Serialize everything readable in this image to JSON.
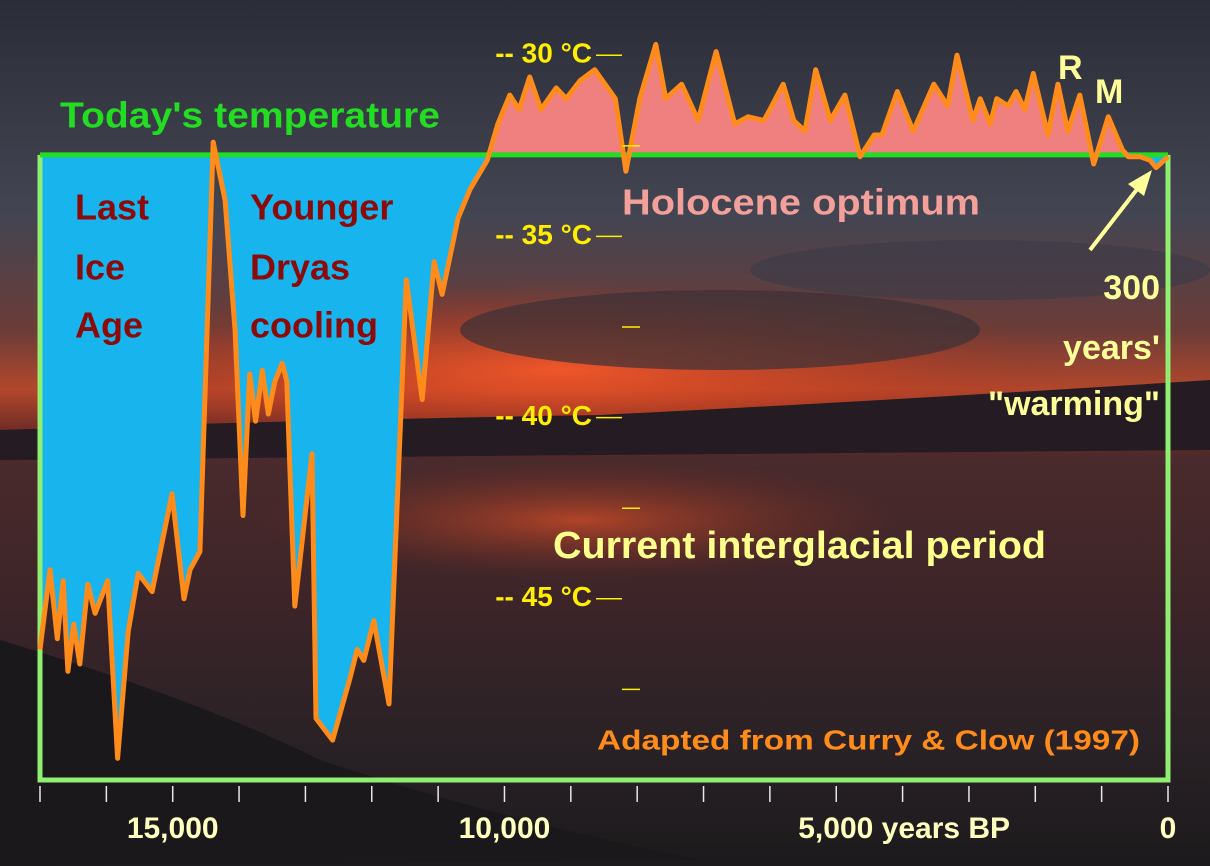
{
  "chart_data": {
    "type": "line",
    "color": "#ff8c1a",
    "fill_above_color": "#f08080",
    "fill_below_color": "#18b4ee",
    "frame_color": "#90ee70",
    "reference_line": {
      "value": -32.75,
      "label": "Today's temperature",
      "color": "#22dd22"
    },
    "xlim": [
      17000,
      0
    ],
    "ylim": [
      -50,
      -29
    ],
    "xticks": [
      {
        "value": 15000,
        "label": "15,000"
      },
      {
        "value": 10000,
        "label": "10,000"
      },
      {
        "value": 5000,
        "label": "5,000 years BP"
      },
      0
    ],
    "xminorticks": [
      17000,
      16000,
      15000,
      14000,
      13000,
      12000,
      11000,
      10000,
      9000,
      8000,
      7000,
      6000,
      5000,
      4000,
      3000,
      2000,
      1000,
      0
    ],
    "yticks": [
      {
        "value": -30,
        "label": "-- 30 °C"
      },
      {
        "value": -35,
        "label": "-- 35 °C"
      },
      {
        "value": -40,
        "label": "-- 40 °C"
      },
      {
        "value": -45,
        "label": "-- 45 °C"
      }
    ],
    "yminorticks": [
      -32.5,
      -37.5,
      -42.5,
      -47.5
    ],
    "x": [
      17000,
      16850,
      16740,
      16650,
      16580,
      16490,
      16400,
      16280,
      16170,
      15980,
      15830,
      15670,
      15520,
      15310,
      15010,
      14830,
      14740,
      14590,
      14390,
      14210,
      14060,
      13940,
      13840,
      13750,
      13650,
      13560,
      13460,
      13350,
      13280,
      13160,
      12900,
      12840,
      12590,
      12330,
      12220,
      12120,
      11970,
      11740,
      11480,
      11240,
      11060,
      10940,
      10700,
      10520,
      10260,
      10100,
      9920,
      9780,
      9620,
      9450,
      9220,
      9070,
      8860,
      8640,
      8330,
      8170,
      7960,
      7720,
      7570,
      7330,
      7080,
      6810,
      6530,
      6330,
      6090,
      6000,
      5800,
      5640,
      5470,
      5310,
      5090,
      4870,
      4640,
      4430,
      4310,
      4080,
      3840,
      3530,
      3320,
      3180,
      2940,
      2830,
      2680,
      2580,
      2410,
      2290,
      2160,
      2030,
      1810,
      1660,
      1510,
      1330,
      1120,
      900,
      690,
      600,
      420,
      270,
      180,
      0
    ],
    "values": [
      -46.4,
      -44.2,
      -46.1,
      -44.5,
      -47.0,
      -45.7,
      -46.8,
      -44.6,
      -45.4,
      -44.5,
      -49.4,
      -45.9,
      -44.3,
      -44.8,
      -42.1,
      -45.0,
      -44.2,
      -43.7,
      -32.4,
      -34.0,
      -37.6,
      -42.7,
      -38.8,
      -40.1,
      -38.7,
      -39.9,
      -39.0,
      -38.5,
      -39.0,
      -45.2,
      -41.0,
      -48.3,
      -48.9,
      -47.2,
      -46.4,
      -46.7,
      -45.6,
      -47.9,
      -36.2,
      -39.5,
      -35.7,
      -36.6,
      -34.5,
      -33.7,
      -32.9,
      -31.9,
      -31.1,
      -31.5,
      -30.6,
      -31.5,
      -30.9,
      -31.2,
      -30.7,
      -30.4,
      -31.2,
      -33.2,
      -31.2,
      -29.7,
      -31.2,
      -30.8,
      -31.8,
      -29.9,
      -31.9,
      -31.7,
      -31.8,
      -31.5,
      -30.8,
      -31.8,
      -32.1,
      -30.4,
      -31.8,
      -31.1,
      -32.8,
      -32.2,
      -32.2,
      -31.0,
      -32.1,
      -30.8,
      -31.4,
      -30.0,
      -31.8,
      -31.2,
      -31.9,
      -31.2,
      -31.4,
      -31.0,
      -31.5,
      -30.5,
      -32.2,
      -30.8,
      -32.1,
      -31.1,
      -33.0,
      -31.7,
      -32.6,
      -32.8,
      -32.8,
      -32.9,
      -33.1,
      -32.8
    ],
    "annotations": [
      {
        "lines": [
          "Last",
          "Ice",
          "Age"
        ],
        "color": "#8b0a0a"
      },
      {
        "lines": [
          "Younger",
          "Dryas",
          "cooling"
        ],
        "color": "#8b0a0a"
      },
      {
        "lines": [
          "Holocene optimum"
        ],
        "color": "#f4a09a"
      },
      {
        "lines": [
          "R"
        ],
        "color": "#ffff99"
      },
      {
        "lines": [
          "M"
        ],
        "color": "#ffff99"
      },
      {
        "lines": [
          "300",
          "years'",
          "\"warming\""
        ],
        "color": "#ffff99"
      },
      {
        "lines": [
          "Current interglacial period"
        ],
        "color": "#ffff8c"
      },
      {
        "lines": [
          "Adapted from Curry & Clow (1997)"
        ],
        "color": "#ff8c1a"
      }
    ],
    "ytick_color": "#ffee00",
    "xtick_color": "#ffffc0"
  }
}
